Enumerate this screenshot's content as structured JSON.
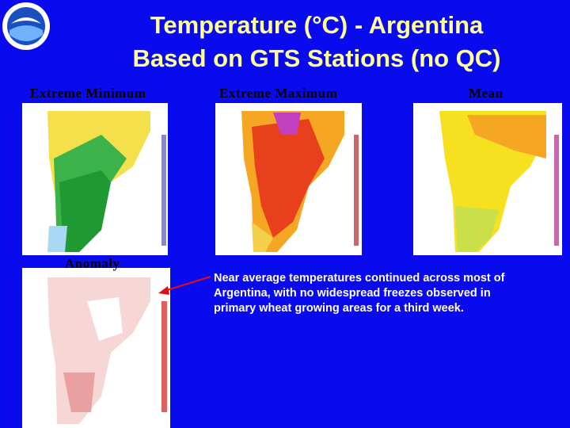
{
  "header": {
    "title_line_1": "Temperature (°C) - Argentina",
    "title_line_2": "Based on GTS Stations (no QC)"
  },
  "panels": [
    {
      "label": "Extreme Minimum"
    },
    {
      "label": "Extreme Maximum"
    },
    {
      "label": "Mean"
    },
    {
      "label": "Anomaly"
    }
  ],
  "body": {
    "text": "Near average temperatures continued across most of Argentina, with no widespread freezes observed in primary wheat growing areas for a third week."
  }
}
